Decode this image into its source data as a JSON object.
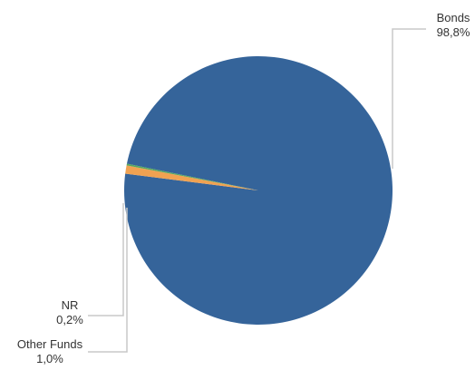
{
  "chart_data": {
    "type": "pie",
    "title": "",
    "slices": [
      {
        "label": "Bonds",
        "value": 98.8,
        "value_label": "98,8%",
        "color": "#35649A"
      },
      {
        "label": "Other Funds",
        "value": 1.0,
        "value_label": "1,0%",
        "color": "#F0A252"
      },
      {
        "label": "NR",
        "value": 0.2,
        "value_label": "0,2%",
        "color": "#57A660"
      }
    ],
    "legend": "none"
  }
}
